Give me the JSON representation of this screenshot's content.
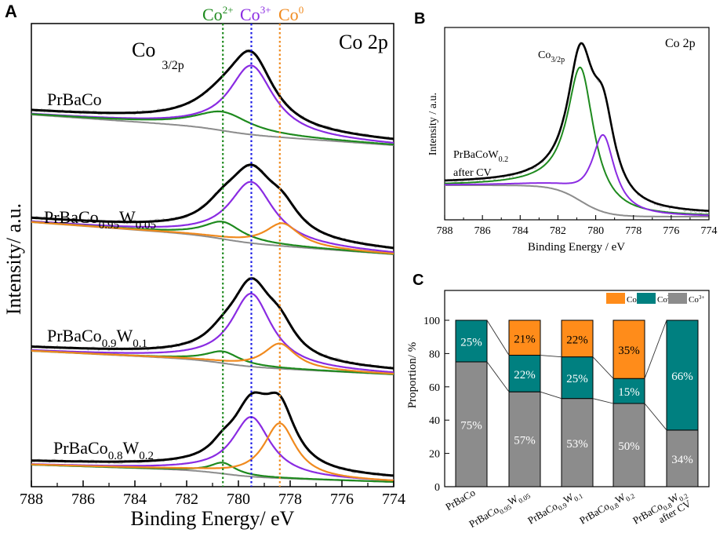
{
  "panels": {
    "a": {
      "letter": "A",
      "title": "Co 2p",
      "orbital_main": "Co",
      "orbital_sub": "3/2p",
      "xlabel": "Binding Energy/ eV",
      "ylabel": "Intensity/ a.u."
    },
    "b": {
      "letter": "B",
      "title": "Co 2p",
      "orbital_main": "Co",
      "orbital_sub": "3/2p",
      "xlabel": "Binding Energy / eV",
      "ylabel": "Intensity / a.u.",
      "sample_main": "PrBaCoW",
      "sample_sub": "0.2",
      "sample_note": "after CV"
    },
    "c": {
      "letter": "C",
      "ylabel": "Proportion/ %"
    }
  },
  "reference_lines": [
    {
      "label": "Co",
      "sup": "2+",
      "energy": 780.6,
      "color": "#1e8a1e"
    },
    {
      "label": "Co",
      "sup": "3+",
      "energy": 779.5,
      "color": "#1a1ae6"
    },
    {
      "label": "Co",
      "sup": "0",
      "energy": 778.4,
      "color": "#f08a1e"
    }
  ],
  "samples_a": [
    {
      "parts": [
        [
          "PrBaCo",
          ""
        ]
      ]
    },
    {
      "parts": [
        [
          "PrBaCo",
          ""
        ],
        [
          "0.95",
          ""
        ],
        [
          "W",
          ""
        ],
        [
          "0.05",
          ""
        ]
      ]
    },
    {
      "parts": [
        [
          "PrBaCo",
          ""
        ],
        [
          "0.9",
          ""
        ],
        [
          "W",
          ""
        ],
        [
          "0.1",
          ""
        ]
      ]
    },
    {
      "parts": [
        [
          "PrBaCo",
          ""
        ],
        [
          "0.8",
          ""
        ],
        [
          "W",
          ""
        ],
        [
          "0.2",
          ""
        ]
      ]
    }
  ],
  "colors": {
    "envelope": "#000000",
    "co3": "#8a2be2",
    "co2": "#1e8a1e",
    "co0": "#f08a1e",
    "background": "#8c8c8c",
    "raw": "#c8c8c8",
    "bar_co0": "#ff8c1a",
    "bar_co2": "#008080",
    "bar_co3": "#8c8c8c"
  },
  "chart_data": [
    {
      "type": "line",
      "title": "Co 2p",
      "xlabel": "Binding Energy/ eV",
      "ylabel": "Intensity/ a.u.",
      "xlim": [
        788,
        774
      ],
      "xticks": [
        788,
        786,
        784,
        782,
        780,
        778,
        776,
        774
      ],
      "series": [
        {
          "sample": "PrBaCo",
          "components": [
            "Co3+ 779.5",
            "Co2+ 780.6"
          ]
        },
        {
          "sample": "PrBaCo0.95W0.05",
          "components": [
            "Co3+ 779.5",
            "Co2+ 780.6",
            "Co0 778.4"
          ]
        },
        {
          "sample": "PrBaCo0.9W0.1",
          "components": [
            "Co3+ 779.5",
            "Co2+ 780.6",
            "Co0 778.4"
          ]
        },
        {
          "sample": "PrBaCo0.8W0.2",
          "components": [
            "Co3+ 779.5",
            "Co2+ 780.6",
            "Co0 778.4"
          ]
        }
      ]
    },
    {
      "type": "line",
      "title": "Co 2p",
      "xlabel": "Binding Energy / eV",
      "ylabel": "Intensity / a.u.",
      "xlim": [
        788,
        774
      ],
      "xticks": [
        788,
        786,
        784,
        782,
        780,
        778,
        776,
        774
      ],
      "series": [
        {
          "sample": "PrBaCoW0.2 after CV",
          "components": [
            "Co2+ 780.8",
            "Co3+ 779.6"
          ]
        }
      ]
    },
    {
      "type": "bar",
      "stacked": true,
      "ylabel": "Proportion/ %",
      "ylim": [
        0,
        100
      ],
      "yticks": [
        0,
        20,
        40,
        60,
        80,
        100
      ],
      "categories": [
        {
          "main": "PrBaCo",
          "parts": []
        },
        {
          "main": "PrBaCo",
          "parts": [
            [
              "0.95",
              "W"
            ],
            [
              "0.05",
              ""
            ]
          ]
        },
        {
          "main": "PrBaCo",
          "parts": [
            [
              "0.9",
              "W"
            ],
            [
              "0.1",
              ""
            ]
          ]
        },
        {
          "main": "PrBaCo",
          "parts": [
            [
              "0.8",
              "W"
            ],
            [
              "0.2",
              ""
            ]
          ]
        },
        {
          "main": "PrBaCo",
          "parts": [
            [
              "0.8",
              "W"
            ],
            [
              "0.2",
              ""
            ]
          ],
          "note": "after CV"
        }
      ],
      "legend": [
        {
          "name": "Co",
          "sup": "0"
        },
        {
          "name": "Co",
          "sup": "2+"
        },
        {
          "name": "Co",
          "sup": "3+"
        }
      ],
      "series": [
        {
          "name": "Co3+",
          "values": [
            75,
            57,
            53,
            50,
            34
          ],
          "labels": [
            "75%",
            "57%",
            "53%",
            "50%",
            "34%"
          ]
        },
        {
          "name": "Co2+",
          "values": [
            25,
            22,
            25,
            15,
            66
          ],
          "labels": [
            "25%",
            "22%",
            "25%",
            "15%",
            "66%"
          ]
        },
        {
          "name": "Co0",
          "values": [
            0,
            21,
            22,
            35,
            0
          ],
          "labels": [
            "",
            "21%",
            "22%",
            "35%",
            ""
          ]
        }
      ]
    }
  ]
}
